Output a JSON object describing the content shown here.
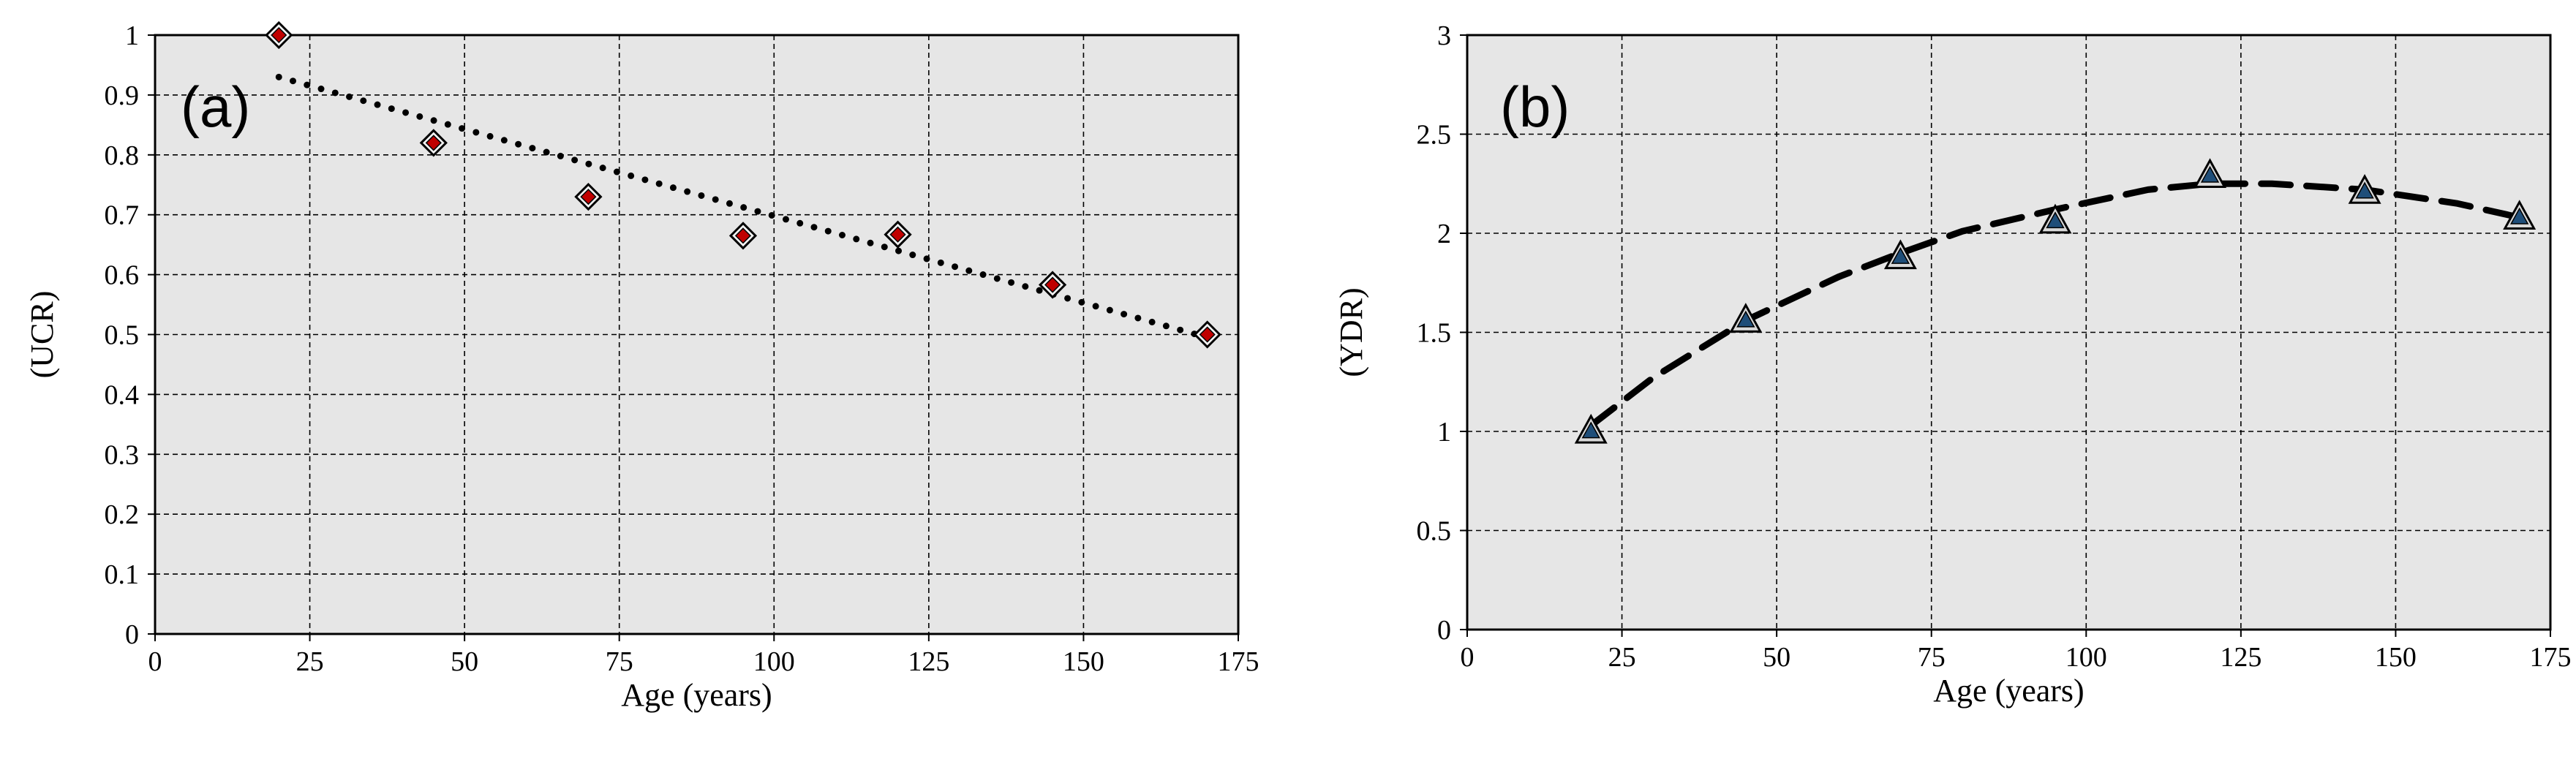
{
  "chart_data": [
    {
      "type": "scatter",
      "panel_label": "(a)",
      "xlabel": "Age (years)",
      "ylabel": "(UCR)",
      "xlim": [
        0,
        175
      ],
      "ylim": [
        0,
        1
      ],
      "xticks": [
        "0",
        "25",
        "50",
        "75",
        "100",
        "125",
        "150",
        "175"
      ],
      "yticks": [
        "0",
        "0.1",
        "0.2",
        "0.3",
        "0.4",
        "0.5",
        "0.6",
        "0.7",
        "0.8",
        "0.9",
        "1"
      ],
      "grid": true,
      "plot_background": "#e6e6e6",
      "series": [
        {
          "marker": "diamond",
          "color": "#c00000",
          "x": [
            20,
            45,
            70,
            95,
            120,
            145,
            170
          ],
          "y": [
            1.0,
            0.82,
            0.73,
            0.665,
            0.667,
            0.583,
            0.5
          ]
        }
      ],
      "trendline": {
        "style": "dotted",
        "color": "#000000",
        "x": [
          20,
          170
        ],
        "y": [
          0.93,
          0.495
        ]
      }
    },
    {
      "type": "scatter",
      "panel_label": "(b)",
      "xlabel": "Age (years)",
      "ylabel": "(YDR)",
      "xlim": [
        0,
        175
      ],
      "ylim": [
        0,
        3
      ],
      "xticks": [
        "0",
        "25",
        "50",
        "75",
        "100",
        "125",
        "150",
        "175"
      ],
      "yticks": [
        "0",
        "0.5",
        "1",
        "1.5",
        "2",
        "2.5",
        "3"
      ],
      "grid": true,
      "plot_background": "#e6e6e6",
      "series": [
        {
          "marker": "triangle",
          "color": "#1f4e79",
          "x": [
            20,
            45,
            70,
            95,
            120,
            145,
            170
          ],
          "y": [
            1.0,
            1.56,
            1.88,
            2.06,
            2.29,
            2.21,
            2.08
          ]
        }
      ],
      "trendline": {
        "style": "dashed",
        "color": "#000000",
        "x": [
          20,
          30,
          45,
          60,
          70,
          80,
          95,
          110,
          120,
          130,
          145,
          160,
          170
        ],
        "y": [
          1.03,
          1.27,
          1.56,
          1.78,
          1.9,
          2.01,
          2.12,
          2.22,
          2.25,
          2.25,
          2.22,
          2.15,
          2.08
        ]
      }
    }
  ]
}
